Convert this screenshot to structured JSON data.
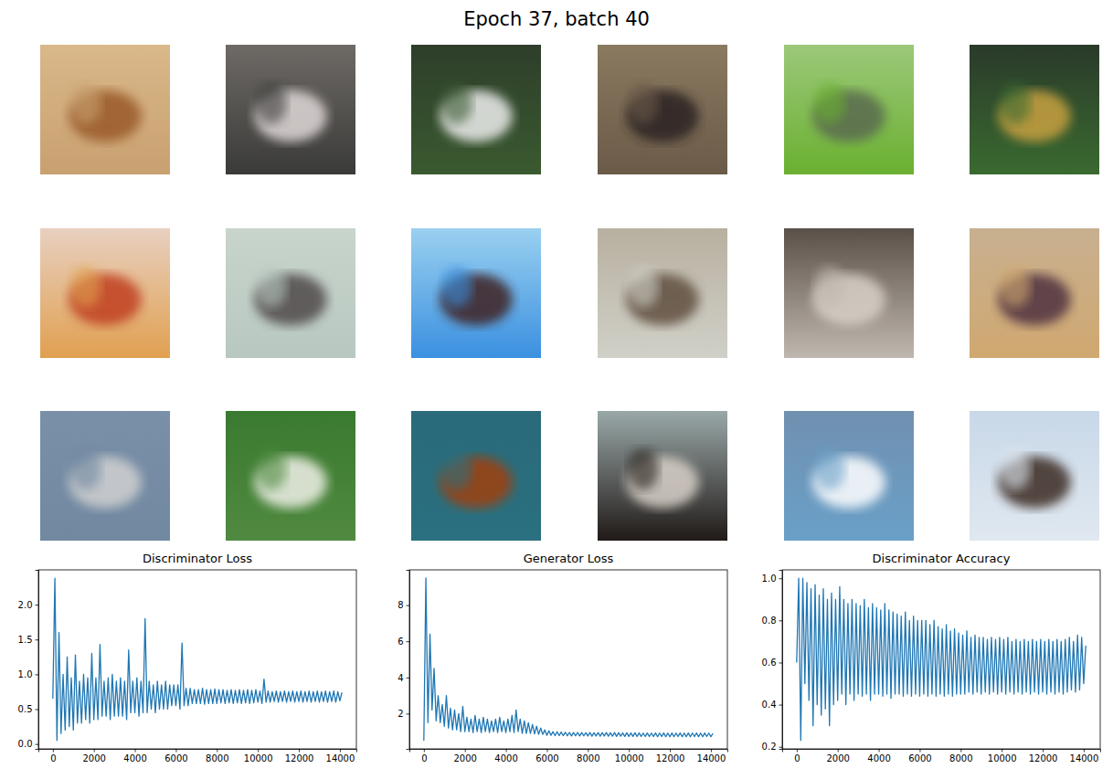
{
  "title": "Epoch 37, batch 40",
  "chart_data": [
    {
      "type": "line",
      "title": "Discriminator Loss",
      "x": [
        0,
        100,
        200,
        300,
        400,
        500,
        600,
        700,
        800,
        900,
        1000,
        1100,
        1200,
        1300,
        1400,
        1500,
        1600,
        1700,
        1800,
        1900,
        2000,
        2100,
        2200,
        2300,
        2400,
        2500,
        2600,
        2700,
        2800,
        2900,
        3000,
        3100,
        3200,
        3300,
        3400,
        3500,
        3600,
        3700,
        3800,
        3900,
        4000,
        4100,
        4200,
        4300,
        4400,
        4500,
        4600,
        4700,
        4800,
        4900,
        5000,
        5100,
        5200,
        5300,
        5400,
        5500,
        5600,
        5700,
        5800,
        5900,
        6000,
        6100,
        6200,
        6300,
        6400,
        6500,
        6600,
        6700,
        6800,
        6900,
        7000,
        7100,
        7200,
        7300,
        7400,
        7500,
        7600,
        7700,
        7800,
        7900,
        8000,
        8100,
        8200,
        8300,
        8400,
        8500,
        8600,
        8700,
        8800,
        8900,
        9000,
        9100,
        9200,
        9300,
        9400,
        9500,
        9600,
        9700,
        9800,
        9900,
        10000,
        10100,
        10200,
        10300,
        10400,
        10500,
        10600,
        10700,
        10800,
        10900,
        11000,
        11100,
        11200,
        11300,
        11400,
        11500,
        11600,
        11700,
        11800,
        11900,
        12000,
        12100,
        12200,
        12300,
        12400,
        12500,
        12600,
        12700,
        12800,
        12900,
        13000,
        13100,
        13200,
        13300,
        13400,
        13500,
        13600,
        13700,
        13800,
        13900,
        14000,
        14100
      ],
      "series": [
        {
          "color": "#1f77b4",
          "values": [
            0.65,
            2.38,
            0.05,
            1.6,
            0.15,
            1.0,
            0.2,
            1.25,
            0.25,
            0.95,
            0.2,
            1.28,
            0.3,
            0.9,
            0.3,
            1.0,
            0.35,
            0.95,
            0.3,
            1.3,
            0.35,
            0.95,
            0.35,
            1.43,
            0.4,
            0.9,
            0.4,
            0.95,
            0.35,
            1.0,
            0.4,
            0.9,
            0.4,
            0.95,
            0.4,
            0.9,
            0.35,
            1.35,
            0.45,
            0.9,
            0.45,
            0.95,
            0.4,
            0.9,
            0.45,
            1.8,
            0.45,
            0.9,
            0.5,
            0.85,
            0.45,
            0.9,
            0.5,
            0.85,
            0.5,
            0.9,
            0.5,
            0.85,
            0.55,
            0.85,
            0.55,
            0.85,
            0.5,
            1.45,
            0.55,
            0.8,
            0.55,
            0.8,
            0.58,
            0.78,
            0.58,
            0.78,
            0.58,
            0.8,
            0.57,
            0.78,
            0.58,
            0.78,
            0.58,
            0.79,
            0.58,
            0.78,
            0.59,
            0.78,
            0.58,
            0.77,
            0.59,
            0.78,
            0.58,
            0.77,
            0.59,
            0.78,
            0.58,
            0.77,
            0.59,
            0.78,
            0.58,
            0.77,
            0.59,
            0.78,
            0.6,
            0.76,
            0.58,
            0.93,
            0.6,
            0.76,
            0.6,
            0.75,
            0.61,
            0.76,
            0.6,
            0.75,
            0.61,
            0.76,
            0.6,
            0.75,
            0.61,
            0.76,
            0.6,
            0.75,
            0.61,
            0.76,
            0.6,
            0.75,
            0.61,
            0.76,
            0.6,
            0.75,
            0.61,
            0.76,
            0.6,
            0.75,
            0.61,
            0.76,
            0.6,
            0.75,
            0.61,
            0.76,
            0.6,
            0.75,
            0.62,
            0.74
          ]
        }
      ],
      "xlim": [
        -705,
        14805
      ],
      "xticks": [
        0,
        2000,
        4000,
        6000,
        8000,
        10000,
        12000,
        14000
      ],
      "ylim": [
        -0.07,
        2.5
      ],
      "yticks": [
        {
          "value": 0,
          "label": "0.0"
        },
        0.5,
        {
          "value": 1,
          "label": "1.0"
        },
        1.5,
        {
          "value": 2,
          "label": "2.0"
        }
      ]
    },
    {
      "type": "line",
      "title": "Generator Loss",
      "x": [
        0,
        100,
        200,
        300,
        400,
        500,
        600,
        700,
        800,
        900,
        1000,
        1100,
        1200,
        1300,
        1400,
        1500,
        1600,
        1700,
        1800,
        1900,
        2000,
        2100,
        2200,
        2300,
        2400,
        2500,
        2600,
        2700,
        2800,
        2900,
        3000,
        3100,
        3200,
        3300,
        3400,
        3500,
        3600,
        3700,
        3800,
        3900,
        4000,
        4100,
        4200,
        4300,
        4400,
        4500,
        4600,
        4700,
        4800,
        4900,
        5000,
        5100,
        5200,
        5300,
        5400,
        5500,
        5600,
        5700,
        5800,
        5900,
        6000,
        6100,
        6200,
        6300,
        6400,
        6500,
        6600,
        6700,
        6800,
        6900,
        7000,
        7100,
        7200,
        7300,
        7400,
        7500,
        7600,
        7700,
        7800,
        7900,
        8000,
        8100,
        8200,
        8300,
        8400,
        8500,
        8600,
        8700,
        8800,
        8900,
        9000,
        9100,
        9200,
        9300,
        9400,
        9500,
        9600,
        9700,
        9800,
        9900,
        10000,
        10100,
        10200,
        10300,
        10400,
        10500,
        10600,
        10700,
        10800,
        10900,
        11000,
        11100,
        11200,
        11300,
        11400,
        11500,
        11600,
        11700,
        11800,
        11900,
        12000,
        12100,
        12200,
        12300,
        12400,
        12500,
        12600,
        12700,
        12800,
        12900,
        13000,
        13100,
        13200,
        13300,
        13400,
        13500,
        13600,
        13700,
        13800,
        13900,
        14000,
        14100
      ],
      "series": [
        {
          "color": "#1f77b4",
          "values": [
            0.5,
            9.5,
            1.5,
            6.4,
            2.2,
            4.5,
            1.6,
            3.0,
            1.5,
            2.5,
            1.3,
            3.0,
            1.2,
            2.3,
            1.1,
            2.2,
            1.1,
            2.0,
            1.0,
            2.4,
            1.0,
            1.8,
            1.0,
            1.7,
            0.95,
            1.9,
            1.0,
            1.7,
            0.95,
            1.8,
            1.0,
            1.7,
            0.95,
            1.6,
            1.0,
            1.7,
            0.95,
            1.8,
            1.0,
            1.6,
            0.95,
            1.7,
            1.0,
            1.9,
            0.95,
            2.2,
            1.0,
            1.7,
            0.9,
            1.6,
            0.9,
            1.5,
            0.9,
            1.4,
            0.88,
            1.3,
            0.85,
            1.2,
            0.85,
            1.1,
            0.8,
            1.05,
            0.8,
            1.0,
            0.78,
            1.0,
            0.78,
            0.98,
            0.78,
            0.97,
            0.77,
            0.96,
            0.76,
            0.95,
            0.77,
            0.96,
            0.76,
            0.95,
            0.77,
            0.94,
            0.76,
            0.95,
            0.75,
            0.94,
            0.76,
            0.95,
            0.75,
            0.94,
            0.76,
            0.95,
            0.75,
            0.94,
            0.75,
            0.95,
            0.74,
            0.94,
            0.75,
            0.93,
            0.74,
            0.94,
            0.74,
            0.93,
            0.74,
            0.94,
            0.73,
            0.93,
            0.74,
            0.92,
            0.73,
            0.93,
            0.73,
            0.92,
            0.73,
            0.93,
            0.72,
            0.92,
            0.73,
            0.93,
            0.72,
            0.92,
            0.72,
            0.93,
            0.72,
            0.92,
            0.73,
            0.93,
            0.72,
            0.92,
            0.72,
            0.93,
            0.72,
            0.92,
            0.73,
            0.93,
            0.72,
            0.92,
            0.72,
            0.93,
            0.73,
            0.92,
            0.72,
            0.9
          ]
        }
      ],
      "xlim": [
        -705,
        14805
      ],
      "xticks": [
        0,
        2000,
        4000,
        6000,
        8000,
        10000,
        12000,
        14000
      ],
      "ylim": [
        0.05,
        9.95
      ],
      "yticks": [
        2,
        4,
        6,
        8
      ]
    },
    {
      "type": "line",
      "title": "Discriminator Accuracy",
      "x": [
        0,
        100,
        200,
        300,
        400,
        500,
        600,
        700,
        800,
        900,
        1000,
        1100,
        1200,
        1300,
        1400,
        1500,
        1600,
        1700,
        1800,
        1900,
        2000,
        2100,
        2200,
        2300,
        2400,
        2500,
        2600,
        2700,
        2800,
        2900,
        3000,
        3100,
        3200,
        3300,
        3400,
        3500,
        3600,
        3700,
        3800,
        3900,
        4000,
        4100,
        4200,
        4300,
        4400,
        4500,
        4600,
        4700,
        4800,
        4900,
        5000,
        5100,
        5200,
        5300,
        5400,
        5500,
        5600,
        5700,
        5800,
        5900,
        6000,
        6100,
        6200,
        6300,
        6400,
        6500,
        6600,
        6700,
        6800,
        6900,
        7000,
        7100,
        7200,
        7300,
        7400,
        7500,
        7600,
        7700,
        7800,
        7900,
        8000,
        8100,
        8200,
        8300,
        8400,
        8500,
        8600,
        8700,
        8800,
        8900,
        9000,
        9100,
        9200,
        9300,
        9400,
        9500,
        9600,
        9700,
        9800,
        9900,
        10000,
        10100,
        10200,
        10300,
        10400,
        10500,
        10600,
        10700,
        10800,
        10900,
        11000,
        11100,
        11200,
        11300,
        11400,
        11500,
        11600,
        11700,
        11800,
        11900,
        12000,
        12100,
        12200,
        12300,
        12400,
        12500,
        12600,
        12700,
        12800,
        12900,
        13000,
        13100,
        13200,
        13300,
        13400,
        13500,
        13600,
        13700,
        13800,
        13900,
        14000,
        14100
      ],
      "series": [
        {
          "color": "#1f77b4",
          "values": [
            0.6,
            1.0,
            0.23,
            1.0,
            0.5,
            0.98,
            0.42,
            0.95,
            0.3,
            0.97,
            0.4,
            0.92,
            0.35,
            0.95,
            0.38,
            0.9,
            0.3,
            0.93,
            0.4,
            0.9,
            0.42,
            0.96,
            0.45,
            0.9,
            0.4,
            0.88,
            0.45,
            0.9,
            0.42,
            0.88,
            0.45,
            0.87,
            0.44,
            0.9,
            0.45,
            0.86,
            0.42,
            0.88,
            0.45,
            0.86,
            0.45,
            0.85,
            0.44,
            0.88,
            0.45,
            0.85,
            0.43,
            0.84,
            0.45,
            0.83,
            0.45,
            0.82,
            0.44,
            0.84,
            0.45,
            0.8,
            0.44,
            0.82,
            0.45,
            0.8,
            0.44,
            0.8,
            0.45,
            0.8,
            0.44,
            0.78,
            0.45,
            0.8,
            0.44,
            0.77,
            0.45,
            0.76,
            0.44,
            0.78,
            0.45,
            0.75,
            0.44,
            0.76,
            0.45,
            0.74,
            0.45,
            0.73,
            0.45,
            0.75,
            0.46,
            0.72,
            0.45,
            0.73,
            0.46,
            0.72,
            0.45,
            0.72,
            0.46,
            0.71,
            0.45,
            0.72,
            0.46,
            0.71,
            0.45,
            0.72,
            0.46,
            0.71,
            0.45,
            0.72,
            0.46,
            0.7,
            0.45,
            0.71,
            0.46,
            0.7,
            0.45,
            0.71,
            0.46,
            0.7,
            0.45,
            0.71,
            0.46,
            0.7,
            0.45,
            0.71,
            0.46,
            0.7,
            0.45,
            0.71,
            0.46,
            0.7,
            0.45,
            0.71,
            0.46,
            0.7,
            0.45,
            0.71,
            0.46,
            0.72,
            0.47,
            0.7,
            0.46,
            0.73,
            0.47,
            0.72,
            0.5,
            0.68
          ]
        }
      ],
      "xlim": [
        -705,
        14805
      ],
      "xticks": [
        0,
        2000,
        4000,
        6000,
        8000,
        10000,
        12000,
        14000
      ],
      "ylim": [
        0.19,
        1.04
      ],
      "yticks": [
        0.2,
        0.4,
        0.6,
        0.8,
        {
          "value": 1,
          "label": "1.0"
        }
      ]
    }
  ]
}
